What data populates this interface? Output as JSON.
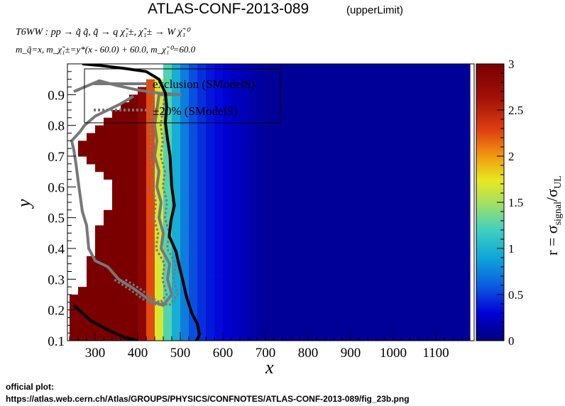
{
  "title": "ATLAS-CONF-2013-089",
  "title_suffix": "(upperLimit)",
  "process_label": "T6WW : pp → q̃ q̃, q̃ → q χ̃₁±, χ̃₁± → W χ̃₁⁰",
  "mass_label": "m_q̃=x, m_χ̃₁±=y*(x - 60.0) + 60.0, m_χ̃₁⁰=60.0",
  "footer_line1": "official plot:",
  "footer_line2": "https://atlas.web.cern.ch/Atlas/GROUPS/PHYSICS/CONFNOTES/ATLAS-CONF-2013-089/fig_23b.png",
  "colors": {
    "excl_smodels": "#777777",
    "excl_official": "#000000",
    "legend_border": "#000000"
  },
  "chart_data": {
    "type": "heatmap",
    "xlabel": "x",
    "ylabel": "y",
    "zlabel": "r = σ_signal/σ_UL",
    "xlim": [
      235,
      1190
    ],
    "ylim": [
      0.1,
      1.0
    ],
    "zlim": [
      0,
      3
    ],
    "xticks": [
      "300",
      "400",
      "500",
      "600",
      "700",
      "800",
      "900",
      "1000",
      "1100"
    ],
    "yticks": [
      "0.1",
      "0.2",
      "0.3",
      "0.4",
      "0.5",
      "0.6",
      "0.7",
      "0.8",
      "0.9"
    ],
    "zticks": [
      "0",
      "0.5",
      "1",
      "1.5",
      "2",
      "2.5",
      "3"
    ],
    "bin_width_x": 20,
    "bin_width_y": 0.025,
    "grid": false,
    "legend": {
      "position": "top-left",
      "entries": [
        {
          "label": "exclusion (SModelS)",
          "style": "solid-gray"
        },
        {
          "label": "±20% (SModelS)",
          "style": "dotted-gray"
        }
      ]
    },
    "region_left_edge": [
      [
        0.1,
        250
      ],
      [
        0.25,
        250
      ],
      [
        0.3,
        280
      ],
      [
        0.375,
        280
      ],
      [
        0.4,
        300
      ],
      [
        0.525,
        320
      ],
      [
        0.55,
        340
      ],
      [
        0.6,
        340
      ],
      [
        0.65,
        320
      ],
      [
        0.7,
        280
      ],
      [
        0.725,
        260
      ],
      [
        0.75,
        260
      ],
      [
        0.775,
        280
      ],
      [
        0.8,
        300
      ],
      [
        0.825,
        320
      ],
      [
        0.85,
        340
      ],
      [
        0.875,
        360
      ],
      [
        0.9,
        380
      ],
      [
        0.925,
        400
      ],
      [
        0.95,
        440
      ],
      [
        0.975,
        460
      ],
      [
        1.0,
        460
      ]
    ],
    "region_right_edge": [
      [
        0.1,
        1190
      ],
      [
        0.225,
        1170
      ],
      [
        0.3,
        1170
      ],
      [
        0.575,
        1170
      ],
      [
        0.65,
        1170
      ],
      [
        1.0,
        1170
      ]
    ],
    "value_columns": {
      "x": [
        300,
        400,
        420,
        440,
        460,
        480,
        500,
        520,
        560,
        620,
        700
      ],
      "r": [
        3.2,
        3.1,
        2.6,
        1.9,
        1.45,
        1.05,
        0.85,
        0.6,
        0.4,
        0.25,
        0.1
      ]
    },
    "exclusion_smodels": [
      [
        250,
        0.91
      ],
      [
        310,
        0.945
      ],
      [
        350,
        0.93
      ],
      [
        400,
        0.915
      ],
      [
        450,
        0.905
      ],
      [
        500,
        0.9
      ]
    ],
    "exclusion_smodels_lower": [
      [
        450,
        0.9
      ],
      [
        445,
        0.85
      ],
      [
        440,
        0.8
      ],
      [
        445,
        0.75
      ],
      [
        440,
        0.7
      ],
      [
        450,
        0.65
      ],
      [
        445,
        0.6
      ],
      [
        455,
        0.55
      ],
      [
        450,
        0.5
      ],
      [
        460,
        0.45
      ],
      [
        455,
        0.4
      ],
      [
        475,
        0.35
      ],
      [
        470,
        0.3
      ],
      [
        480,
        0.25
      ],
      [
        460,
        0.215
      ],
      [
        430,
        0.23
      ],
      [
        390,
        0.27
      ],
      [
        355,
        0.3
      ],
      [
        330,
        0.34
      ],
      [
        300,
        0.36
      ],
      [
        285,
        0.4
      ],
      [
        280,
        0.475
      ],
      [
        270,
        0.52
      ],
      [
        262,
        0.6
      ],
      [
        255,
        0.675
      ],
      [
        250,
        0.72
      ],
      [
        245,
        0.75
      ],
      [
        265,
        0.78
      ],
      [
        275,
        0.8
      ],
      [
        300,
        0.83
      ],
      [
        330,
        0.85
      ],
      [
        360,
        0.87
      ],
      [
        390,
        0.895
      ]
    ],
    "exclusion_official": [
      [
        270,
        1.0
      ],
      [
        310,
        0.995
      ],
      [
        370,
        0.985
      ],
      [
        420,
        0.975
      ],
      [
        450,
        0.95
      ],
      [
        465,
        0.905
      ],
      [
        468,
        0.86
      ],
      [
        465,
        0.81
      ],
      [
        470,
        0.755
      ],
      [
        476,
        0.7
      ],
      [
        478,
        0.645
      ],
      [
        480,
        0.6
      ],
      [
        486,
        0.54
      ],
      [
        478,
        0.49
      ],
      [
        474,
        0.44
      ],
      [
        490,
        0.39
      ],
      [
        498,
        0.34
      ],
      [
        507,
        0.29
      ],
      [
        515,
        0.24
      ],
      [
        527,
        0.19
      ],
      [
        540,
        0.155
      ],
      [
        545,
        0.12
      ],
      [
        535,
        0.09
      ]
    ],
    "exclusion_official_low": [
      [
        250,
        0.215
      ],
      [
        290,
        0.165
      ],
      [
        330,
        0.135
      ],
      [
        370,
        0.11
      ],
      [
        400,
        0.1
      ]
    ]
  }
}
